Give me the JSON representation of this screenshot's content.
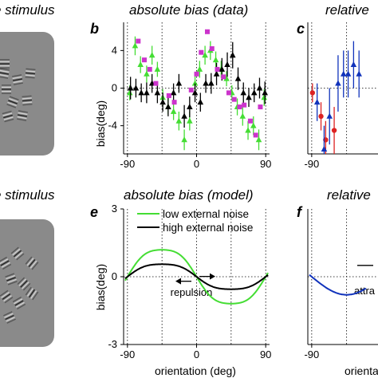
{
  "panel_titles": {
    "top_left": "e stimulus",
    "top_middle": "absolute bias (data)",
    "top_right": "relative",
    "bottom_left": "e stimulus",
    "bottom_middle": "absolute bias (model)",
    "bottom_right": "relative"
  },
  "panel_letters": {
    "b": "b",
    "c": "c",
    "e": "e",
    "f": "f"
  },
  "colors": {
    "green": "#44dd33",
    "black": "#000000",
    "magenta": "#cc33cc",
    "red": "#dd2222",
    "blue": "#1133bb",
    "stimulus_bg": "#8a8a8a"
  },
  "annotations": {
    "repulsion": "repulsion",
    "attraction": "attra"
  },
  "chart_data": [
    {
      "panel": "b",
      "type": "scatter",
      "title": "absolute bias (data)",
      "ylabel": "bias(deg)",
      "xlabel": "",
      "xlim": [
        -95,
        95
      ],
      "ylim": [
        -7,
        7
      ],
      "xticks": [
        "-90",
        "0",
        "90"
      ],
      "yticks": [
        "4",
        "0",
        "-4"
      ],
      "grid": "dotted vertical lines at -90, -45, 0, 45, 90; dotted zero line",
      "series": [
        {
          "color": "green",
          "marker": "triangle",
          "x": [
            -87,
            -80,
            -73,
            -65,
            -58,
            -51,
            -44,
            -37,
            -30,
            -23,
            -16,
            -9,
            -2,
            4,
            11,
            18,
            25,
            32,
            39,
            46,
            53,
            60,
            67,
            74,
            81,
            88
          ],
          "y": [
            -0.5,
            4.5,
            2.5,
            1.5,
            3.5,
            2.0,
            -1.0,
            -2.0,
            -2.5,
            -3.5,
            -5.5,
            -3.5,
            0.5,
            2.0,
            3.5,
            4.0,
            3.0,
            2.0,
            1.0,
            -0.5,
            -2.0,
            -3.0,
            -4.5,
            -4.0,
            -5.5,
            -1.0
          ],
          "err": [
            0.8,
            1.0,
            0.9,
            0.9,
            1.0,
            0.8,
            0.9,
            0.8,
            0.9,
            1.0,
            1.1,
            1.0,
            0.8,
            0.9,
            1.0,
            1.0,
            0.9,
            0.9,
            0.8,
            0.8,
            0.9,
            1.0,
            1.0,
            1.0,
            1.1,
            0.9
          ]
        },
        {
          "color": "black",
          "marker": "triangle",
          "x": [
            -86,
            -79,
            -72,
            -65,
            -58,
            -51,
            -44,
            -37,
            -30,
            -23,
            -16,
            -9,
            -2,
            5,
            12,
            19,
            26,
            33,
            40,
            47,
            54,
            61,
            68,
            75,
            82,
            89
          ],
          "y": [
            0.0,
            0.0,
            -0.5,
            -0.5,
            0.5,
            -0.5,
            -1.5,
            -2.0,
            -0.5,
            0.5,
            -3.0,
            -2.0,
            -0.5,
            -1.5,
            0.5,
            0.5,
            1.5,
            2.0,
            2.5,
            3.5,
            1.0,
            -0.5,
            -1.0,
            -0.5,
            0.0,
            -0.5
          ],
          "err": [
            1.2,
            1.0,
            1.0,
            1.1,
            1.0,
            1.1,
            1.0,
            1.0,
            1.0,
            1.0,
            1.2,
            1.1,
            1.0,
            1.0,
            1.0,
            1.1,
            1.2,
            1.2,
            1.3,
            1.4,
            1.2,
            1.1,
            1.0,
            1.0,
            1.1,
            1.2
          ]
        },
        {
          "color": "magenta",
          "marker": "square",
          "x": [
            -76,
            -68,
            -61,
            -53,
            -36,
            -29,
            -7,
            0,
            6,
            14,
            20,
            27,
            35,
            42,
            49,
            56,
            62,
            70,
            77,
            83
          ],
          "y": [
            5.0,
            3.0,
            2.0,
            0.5,
            -0.8,
            -1.5,
            -0.2,
            1.5,
            3.8,
            6.0,
            4.2,
            2.0,
            1.2,
            -0.5,
            -1.2,
            -2.0,
            -1.8,
            -3.5,
            -5.0,
            -2.0
          ]
        }
      ]
    },
    {
      "panel": "c",
      "type": "scatter",
      "title": "relative",
      "xlim": [
        -95,
        95
      ],
      "ylim": [
        -7,
        7
      ],
      "xticks": [
        "-90"
      ],
      "series": [
        {
          "color": "red",
          "marker": "circle",
          "x": [
            -89,
            -78,
            -72,
            -61
          ],
          "y": [
            -0.5,
            -3.0,
            -5.5,
            -4.5
          ],
          "err": [
            1.0,
            1.5,
            2.0,
            2.5
          ]
        },
        {
          "color": "blue",
          "marker": "triangle",
          "x": [
            -83,
            -74,
            -67,
            -56,
            -49,
            -43,
            -36,
            -29
          ],
          "y": [
            -1.5,
            -6.5,
            -3.0,
            0.5,
            1.5,
            1.5,
            2.5,
            1.5
          ],
          "err": [
            2.0,
            2.5,
            3.0,
            3.0,
            2.5,
            2.5,
            2.5,
            2.5
          ]
        }
      ]
    },
    {
      "panel": "e",
      "type": "line",
      "title": "absolute bias (model)",
      "xlabel": "orientation (deg)",
      "ylabel": "bias(deg)",
      "xlim": [
        -95,
        95
      ],
      "ylim": [
        -3,
        3
      ],
      "xticks": [
        "-90",
        "0",
        "90"
      ],
      "yticks": [
        "3",
        "0",
        "-3"
      ],
      "legend": "top-right",
      "series": [
        {
          "name": "low external noise",
          "color": "green",
          "amplitude": 1.4
        },
        {
          "name": "high external noise",
          "color": "black",
          "amplitude": 0.65
        }
      ],
      "annotation": "repulsion"
    },
    {
      "panel": "f",
      "type": "line",
      "title": "relative",
      "xlabel": "orientatio",
      "xlim": [
        -95,
        95
      ],
      "ylim": [
        -3,
        3
      ],
      "xticks": [
        "-90"
      ],
      "series": [
        {
          "color": "blue",
          "amplitude": 0.8
        }
      ],
      "annotation": "attra"
    }
  ]
}
